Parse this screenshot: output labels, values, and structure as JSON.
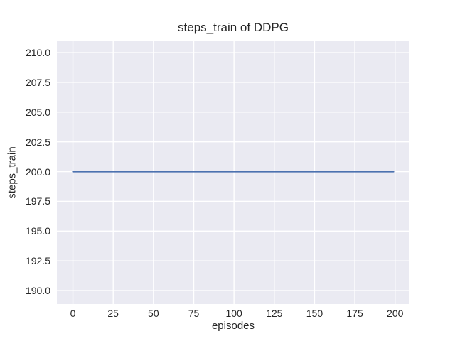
{
  "chart_data": {
    "type": "line",
    "title": "steps_train of DDPG",
    "xlabel": "episodes",
    "ylabel": "steps_train",
    "series": [
      {
        "name": "steps_train",
        "x": [
          0,
          199
        ],
        "y": [
          200,
          200
        ],
        "color": "#4C72B0"
      }
    ],
    "x_ticks": [
      0,
      25,
      50,
      75,
      100,
      125,
      150,
      175,
      200
    ],
    "x_tick_labels": [
      "0",
      "25",
      "50",
      "75",
      "100",
      "125",
      "150",
      "175",
      "200"
    ],
    "y_ticks": [
      190.0,
      192.5,
      195.0,
      197.5,
      200.0,
      202.5,
      205.0,
      207.5,
      210.0
    ],
    "y_tick_labels": [
      "190.0",
      "192.5",
      "195.0",
      "197.5",
      "200.0",
      "202.5",
      "205.0",
      "207.5",
      "210.0"
    ],
    "xlim": [
      -9.95,
      208.95
    ],
    "ylim": [
      188.87,
      210.96
    ],
    "grid": true,
    "legend": "none",
    "style": {
      "figure_bg": "#FFFFFF",
      "axes_bg": "#EAEAF2",
      "grid_color": "#FFFFFF",
      "text_color": "#262626",
      "line_color": "#4C72B0"
    }
  }
}
